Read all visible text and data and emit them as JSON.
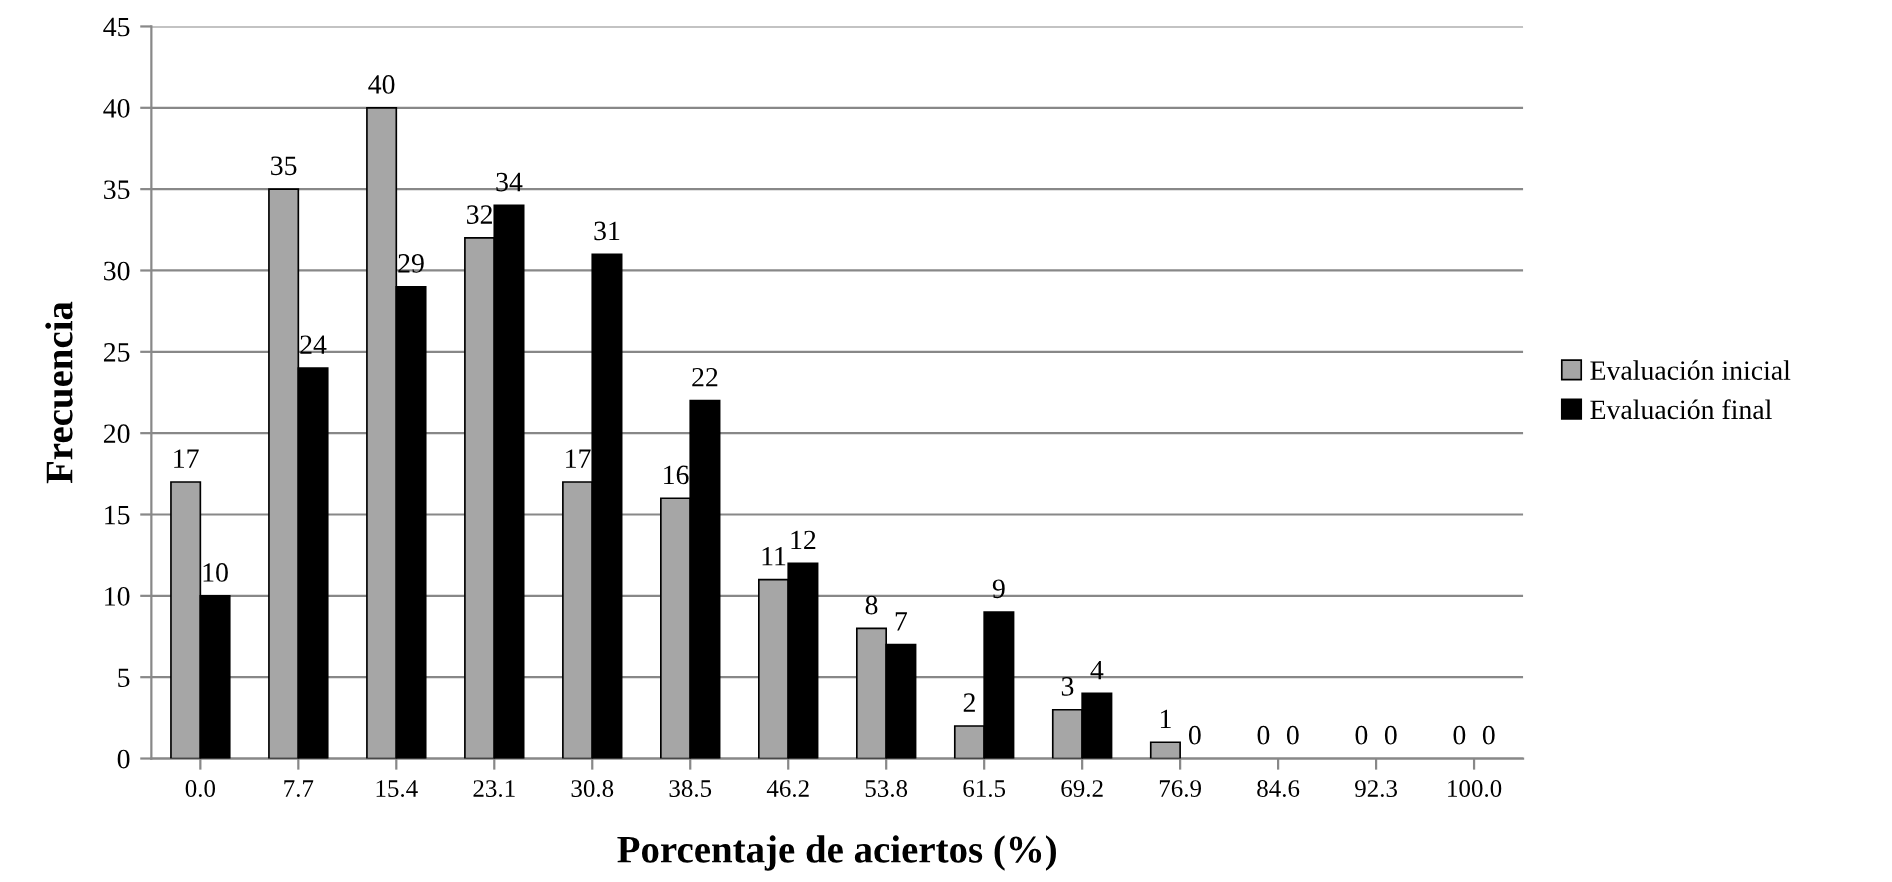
{
  "chart_data": {
    "type": "bar",
    "xlabel": "Porcentaje de aciertos (%)",
    "ylabel": "Frecuencia",
    "categories": [
      "0.0",
      "7.7",
      "15.4",
      "23.1",
      "30.8",
      "38.5",
      "46.2",
      "53.8",
      "61.5",
      "69.2",
      "76.9",
      "84.6",
      "92.3",
      "100.0"
    ],
    "series": [
      {
        "name": "Evaluación inicial",
        "color": "#a6a6a6",
        "values": [
          17,
          35,
          40,
          32,
          17,
          16,
          11,
          8,
          2,
          3,
          1,
          0,
          0,
          0
        ]
      },
      {
        "name": "Evaluación final",
        "color": "#000000",
        "values": [
          10,
          24,
          29,
          34,
          31,
          22,
          12,
          7,
          9,
          4,
          0,
          0,
          0,
          0
        ]
      }
    ],
    "ylim": [
      0,
      45
    ],
    "yticks": [
      0,
      5,
      10,
      15,
      20,
      25,
      30,
      35,
      40,
      45
    ],
    "grid": "y",
    "legend": "right",
    "data_labels": true
  }
}
